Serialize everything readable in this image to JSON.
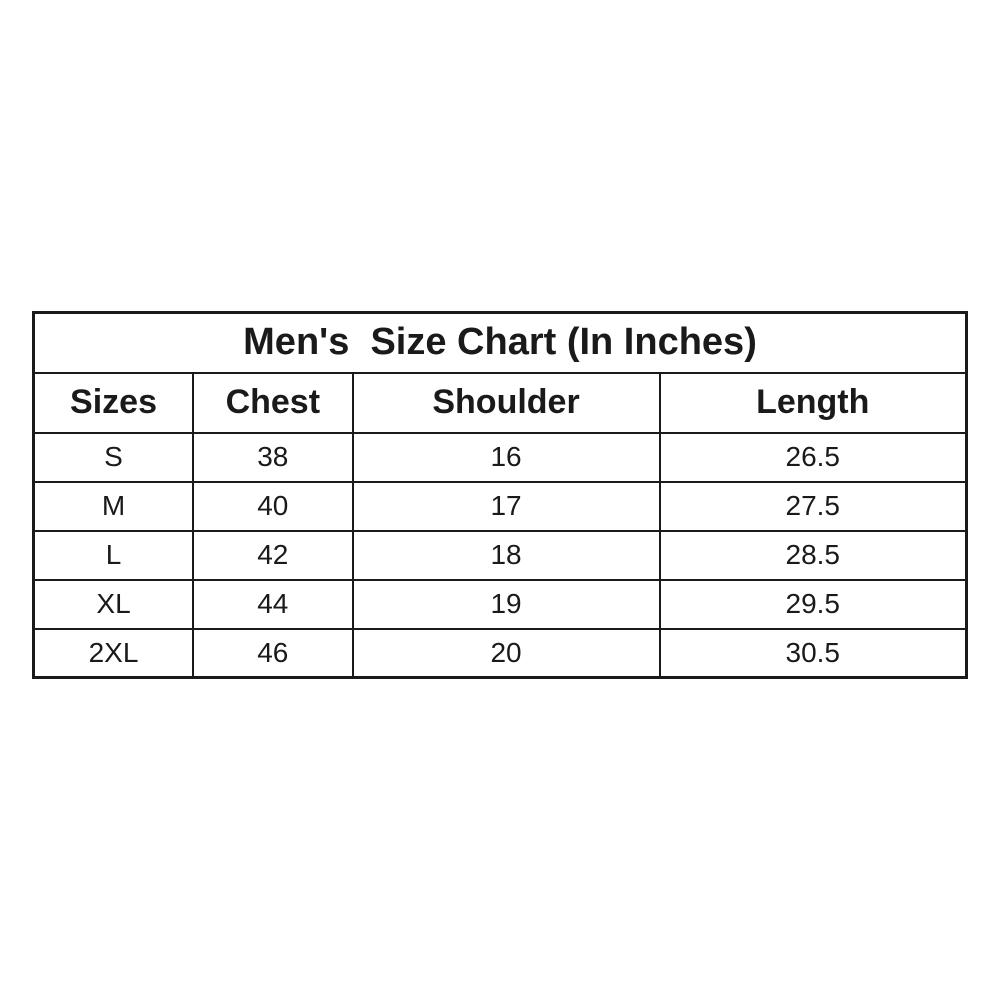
{
  "page": {
    "background_color": "#ffffff",
    "text_color": "#1a1a1a",
    "border_color": "#1a1a1a"
  },
  "size_chart": {
    "title": "Men's  Size Chart (In Inches)",
    "columns": [
      "Sizes",
      "Chest",
      "Shoulder",
      "Length"
    ],
    "rows": [
      {
        "size": "S",
        "chest": "38",
        "shoulder": "16",
        "length": "26.5"
      },
      {
        "size": "M",
        "chest": "40",
        "shoulder": "17",
        "length": "27.5"
      },
      {
        "size": "L",
        "chest": "42",
        "shoulder": "18",
        "length": "28.5"
      },
      {
        "size": "XL",
        "chest": "44",
        "shoulder": "19",
        "length": "29.5"
      },
      {
        "size": "2XL",
        "chest": "46",
        "shoulder": "20",
        "length": "30.5"
      }
    ]
  },
  "chart_data": {
    "type": "table",
    "title": "Men's  Size Chart (In Inches)",
    "columns": [
      "Sizes",
      "Chest",
      "Shoulder",
      "Length"
    ],
    "rows": [
      [
        "S",
        38,
        16,
        26.5
      ],
      [
        "M",
        40,
        17,
        27.5
      ],
      [
        "L",
        42,
        18,
        28.5
      ],
      [
        "XL",
        44,
        19,
        29.5
      ],
      [
        "2XL",
        46,
        20,
        30.5
      ]
    ],
    "units": "inches",
    "layout": "bordered grid table, title row spanning all columns, bold header row, centered cells"
  }
}
